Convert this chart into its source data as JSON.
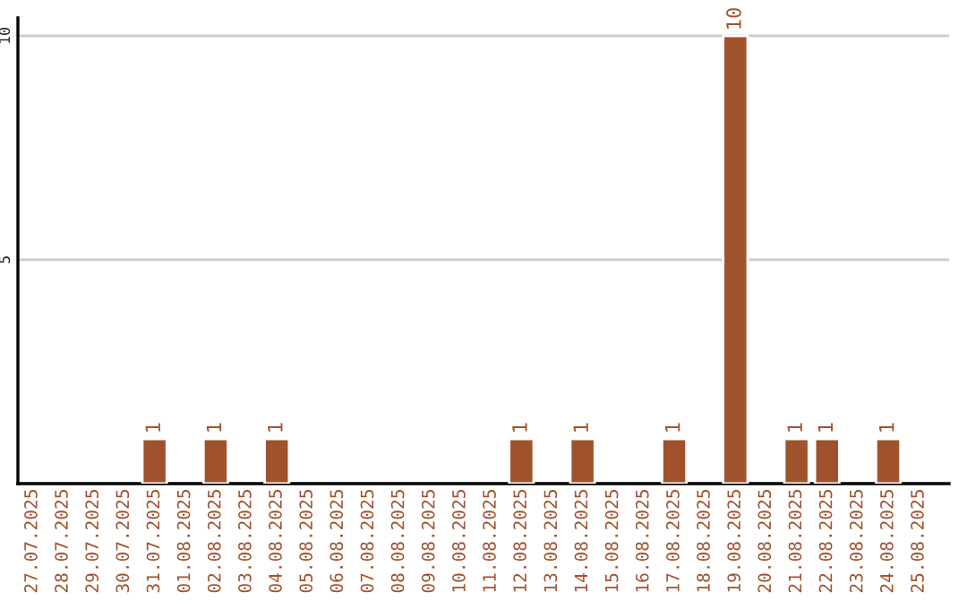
{
  "chart_data": {
    "type": "bar",
    "categories": [
      "27.07.2025",
      "28.07.2025",
      "29.07.2025",
      "30.07.2025",
      "31.07.2025",
      "01.08.2025",
      "02.08.2025",
      "03.08.2025",
      "04.08.2025",
      "05.08.2025",
      "06.08.2025",
      "07.08.2025",
      "08.08.2025",
      "09.08.2025",
      "10.08.2025",
      "11.08.2025",
      "12.08.2025",
      "13.08.2025",
      "14.08.2025",
      "15.08.2025",
      "16.08.2025",
      "17.08.2025",
      "18.08.2025",
      "19.08.2025",
      "20.08.2025",
      "21.08.2025",
      "22.08.2025",
      "23.08.2025",
      "24.08.2025",
      "25.08.2025"
    ],
    "values": [
      0,
      0,
      0,
      0,
      1,
      0,
      1,
      0,
      1,
      0,
      0,
      0,
      0,
      0,
      0,
      0,
      1,
      0,
      1,
      0,
      0,
      1,
      0,
      10,
      0,
      1,
      1,
      0,
      1,
      0
    ],
    "value_labels": [
      null,
      null,
      null,
      null,
      "1",
      null,
      "1",
      null,
      "1",
      null,
      null,
      null,
      null,
      null,
      null,
      null,
      "1",
      null,
      "1",
      null,
      null,
      "1",
      null,
      "10",
      null,
      "1",
      "1",
      null,
      "1",
      null
    ],
    "color": "#a0522d",
    "ylim": [
      0,
      10.4
    ],
    "yticks": [
      5,
      10
    ],
    "grid": "y",
    "legend": false
  }
}
